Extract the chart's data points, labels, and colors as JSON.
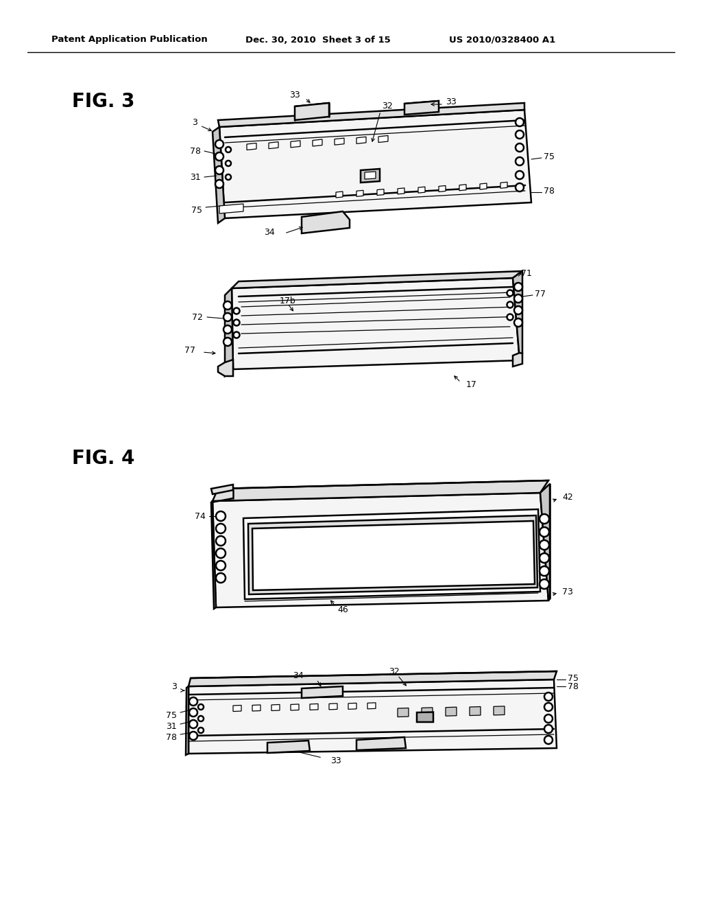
{
  "bg_color": "#ffffff",
  "header_text": "Patent Application Publication",
  "header_date": "Dec. 30, 2010  Sheet 3 of 15",
  "header_patent": "US 2010/0328400 A1",
  "fig3_label": "FIG. 3",
  "fig4_label": "FIG. 4",
  "line_color": "#000000",
  "lw_main": 1.8,
  "lw_thin": 0.9,
  "lw_ann": 0.8,
  "face_light": "#f5f5f5",
  "face_mid": "#e0e0e0",
  "face_dark": "#c8c8c8",
  "face_darker": "#b0b0b0"
}
